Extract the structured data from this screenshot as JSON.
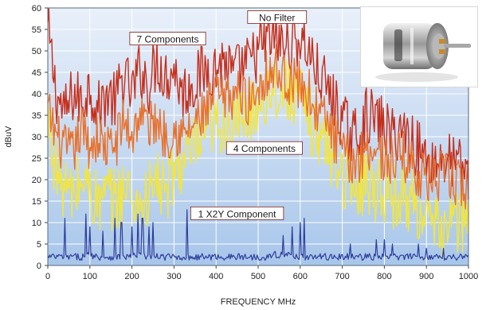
{
  "chart_data": {
    "type": "line",
    "xlabel": "FREQUENCY MHz",
    "ylabel": "dBuV",
    "xlim": [
      0,
      1000
    ],
    "ylim": [
      0,
      60
    ],
    "x_ticks": [
      "0",
      "100",
      "200",
      "300",
      "400",
      "500",
      "600",
      "700",
      "800",
      "900",
      "1000"
    ],
    "y_ticks": [
      "0",
      "5",
      "10",
      "15",
      "20",
      "25",
      "30",
      "35",
      "40",
      "45",
      "50",
      "55",
      "60"
    ],
    "grid": true,
    "background_gradient": [
      "#e9f0fa",
      "#a8c6ea"
    ],
    "series": [
      {
        "name": "No Filter",
        "color": "#c62e1a",
        "x": [
          0,
          20,
          40,
          60,
          80,
          100,
          120,
          140,
          160,
          180,
          200,
          220,
          240,
          260,
          280,
          300,
          320,
          340,
          360,
          380,
          400,
          420,
          440,
          460,
          480,
          500,
          520,
          540,
          560,
          580,
          600,
          620,
          640,
          660,
          680,
          700,
          720,
          740,
          760,
          780,
          800,
          820,
          840,
          860,
          880,
          900,
          920,
          940,
          960,
          980,
          1000
        ],
        "values": [
          55,
          40,
          35,
          40,
          38,
          42,
          36,
          40,
          38,
          44,
          40,
          46,
          42,
          48,
          44,
          46,
          40,
          42,
          44,
          46,
          46,
          48,
          44,
          46,
          47,
          50,
          52,
          53,
          51,
          52,
          53,
          50,
          45,
          42,
          38,
          34,
          30,
          31,
          35,
          34,
          32,
          30,
          32,
          30,
          27,
          25,
          24,
          25,
          24,
          23,
          22
        ]
      },
      {
        "name": "7 Components",
        "color": "#e8702a",
        "x": [
          0,
          20,
          40,
          60,
          80,
          100,
          120,
          140,
          160,
          180,
          200,
          220,
          240,
          260,
          280,
          300,
          320,
          340,
          360,
          380,
          400,
          420,
          440,
          460,
          480,
          500,
          520,
          540,
          560,
          580,
          600,
          620,
          640,
          660,
          680,
          700,
          720,
          740,
          760,
          780,
          800,
          820,
          840,
          860,
          880,
          900,
          920,
          940,
          960,
          980,
          1000
        ],
        "values": [
          36,
          30,
          27,
          26,
          32,
          28,
          30,
          27,
          28,
          34,
          30,
          36,
          32,
          34,
          30,
          32,
          30,
          32,
          34,
          36,
          40,
          38,
          40,
          40,
          38,
          42,
          45,
          46,
          44,
          43,
          42,
          40,
          36,
          34,
          30,
          26,
          24,
          25,
          28,
          27,
          25,
          24,
          26,
          24,
          22,
          20,
          20,
          21,
          20,
          19,
          18
        ]
      },
      {
        "name": "4 Components",
        "color": "#f3e63a",
        "x": [
          0,
          20,
          40,
          60,
          80,
          100,
          120,
          140,
          160,
          180,
          200,
          220,
          240,
          260,
          280,
          300,
          320,
          340,
          360,
          380,
          400,
          420,
          440,
          460,
          480,
          500,
          520,
          540,
          560,
          580,
          600,
          620,
          640,
          660,
          680,
          700,
          720,
          740,
          760,
          780,
          800,
          820,
          840,
          860,
          880,
          900,
          920,
          940,
          960,
          980,
          1000
        ],
        "values": [
          35,
          22,
          18,
          16,
          20,
          18,
          14,
          16,
          15,
          18,
          16,
          14,
          16,
          20,
          16,
          22,
          24,
          26,
          28,
          30,
          32,
          34,
          32,
          34,
          36,
          38,
          40,
          42,
          40,
          41,
          38,
          35,
          30,
          28,
          25,
          22,
          18,
          19,
          20,
          18,
          18,
          16,
          17,
          15,
          14,
          10,
          8,
          9,
          11,
          10,
          12
        ]
      },
      {
        "name": "1 X2Y Component",
        "color": "#2d3f9e",
        "x": [
          0,
          20,
          40,
          60,
          80,
          100,
          120,
          140,
          160,
          180,
          200,
          220,
          240,
          260,
          280,
          300,
          320,
          340,
          360,
          380,
          400,
          420,
          440,
          460,
          480,
          500,
          520,
          540,
          560,
          580,
          600,
          620,
          640,
          660,
          680,
          700,
          720,
          740,
          760,
          780,
          800,
          820,
          840,
          860,
          880,
          900,
          920,
          940,
          960,
          980,
          1000
        ],
        "values": [
          2,
          2,
          2,
          2,
          2,
          2.5,
          2,
          2,
          2,
          2,
          2,
          2.5,
          2,
          2,
          2,
          2,
          2,
          2,
          2,
          2,
          2,
          2,
          2,
          2,
          2,
          2,
          2,
          2.5,
          2.5,
          2.5,
          2,
          2,
          2,
          2,
          2,
          2,
          2,
          2,
          2,
          2,
          2,
          2,
          2,
          2,
          2,
          2,
          2,
          2,
          2,
          2,
          2
        ],
        "peaks": [
          {
            "x": 40,
            "y": 11
          },
          {
            "x": 90,
            "y": 12
          },
          {
            "x": 100,
            "y": 9
          },
          {
            "x": 130,
            "y": 8
          },
          {
            "x": 160,
            "y": 11
          },
          {
            "x": 175,
            "y": 10
          },
          {
            "x": 200,
            "y": 9
          },
          {
            "x": 215,
            "y": 12
          },
          {
            "x": 225,
            "y": 11
          },
          {
            "x": 240,
            "y": 9
          },
          {
            "x": 250,
            "y": 10
          },
          {
            "x": 330,
            "y": 13
          },
          {
            "x": 560,
            "y": 7
          },
          {
            "x": 580,
            "y": 9
          },
          {
            "x": 600,
            "y": 10
          },
          {
            "x": 610,
            "y": 11
          },
          {
            "x": 720,
            "y": 5
          },
          {
            "x": 780,
            "y": 6
          },
          {
            "x": 800,
            "y": 6
          },
          {
            "x": 820,
            "y": 5
          },
          {
            "x": 880,
            "y": 5
          },
          {
            "x": 900,
            "y": 4
          },
          {
            "x": 940,
            "y": 4
          }
        ]
      }
    ],
    "annotations": [
      {
        "id": "no-filter",
        "text": "No Filter",
        "x": 545,
        "y": 57.5
      },
      {
        "id": "7-components",
        "text": "7 Components",
        "x": 285,
        "y": 52.5
      },
      {
        "id": "4-components",
        "text": "4 Components",
        "x": 515,
        "y": 27
      },
      {
        "id": "1-x2y-component",
        "text": "1 X2Y Component",
        "x": 450,
        "y": 11.8
      }
    ],
    "inset_image": "dc-motor-photo"
  }
}
